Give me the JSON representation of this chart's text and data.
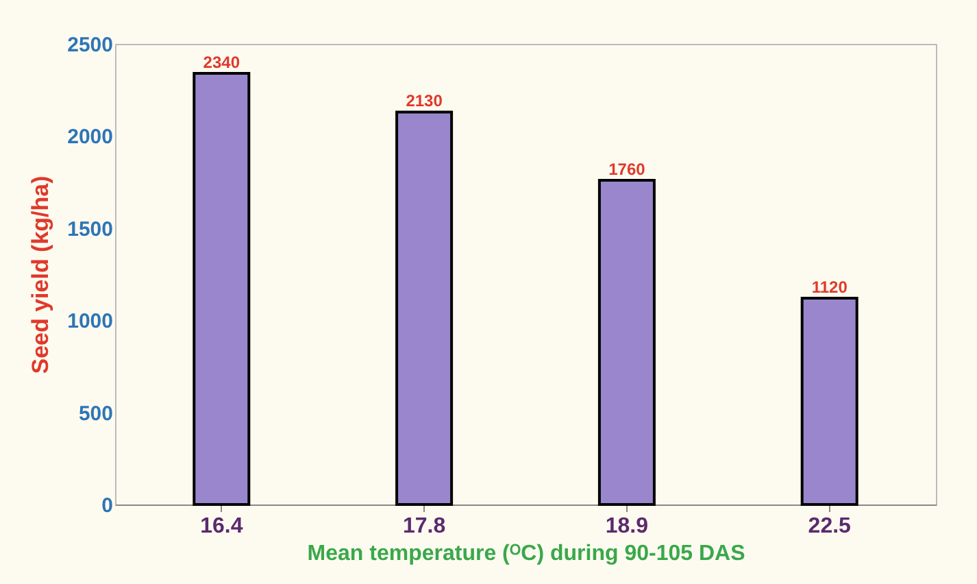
{
  "chart_data": {
    "type": "bar",
    "xlabel": "Mean temperature (ᴼC) during 90-105 DAS",
    "ylabel": "Seed yield (kg/ha)",
    "categories": [
      "16.4",
      "17.8",
      "18.9",
      "22.5"
    ],
    "values": [
      2340,
      2130,
      1760,
      1120
    ],
    "color": "#9a86cc",
    "ylim": [
      0,
      2500
    ],
    "yticks": [
      0,
      500,
      1000,
      1500,
      2000,
      2500
    ],
    "data_labels": true,
    "grid": false
  }
}
